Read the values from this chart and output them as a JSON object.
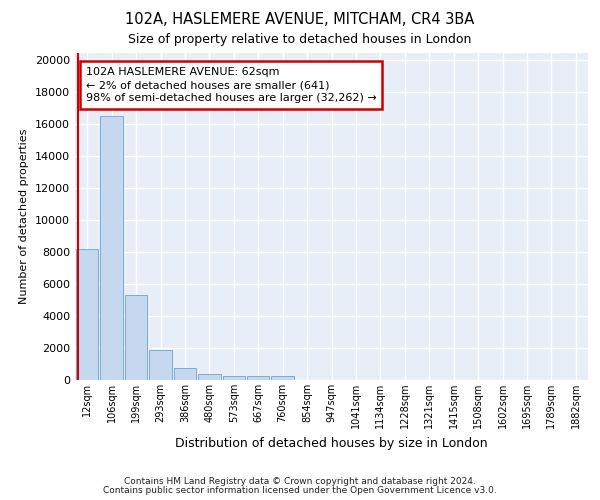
{
  "title1": "102A, HASLEMERE AVENUE, MITCHAM, CR4 3BA",
  "title2": "Size of property relative to detached houses in London",
  "xlabel": "Distribution of detached houses by size in London",
  "ylabel": "Number of detached properties",
  "categories": [
    "12sqm",
    "106sqm",
    "199sqm",
    "293sqm",
    "386sqm",
    "480sqm",
    "573sqm",
    "667sqm",
    "760sqm",
    "854sqm",
    "947sqm",
    "1041sqm",
    "1134sqm",
    "1228sqm",
    "1321sqm",
    "1415sqm",
    "1508sqm",
    "1602sqm",
    "1695sqm",
    "1789sqm",
    "1882sqm"
  ],
  "bar_heights": [
    8200,
    16500,
    5300,
    1850,
    750,
    350,
    250,
    250,
    250,
    0,
    0,
    0,
    0,
    0,
    0,
    0,
    0,
    0,
    0,
    0,
    0
  ],
  "bar_color": "#c5d8f0",
  "bar_edge_color": "#7aadd4",
  "background_color": "#e8eef8",
  "grid_color": "#ffffff",
  "annotation_line1": "102A HASLEMERE AVENUE: 62sqm",
  "annotation_line2": "← 2% of detached houses are smaller (641)",
  "annotation_line3": "98% of semi-detached houses are larger (32,262) →",
  "annotation_box_color": "#ffffff",
  "annotation_box_edge": "#cc0000",
  "footer1": "Contains HM Land Registry data © Crown copyright and database right 2024.",
  "footer2": "Contains public sector information licensed under the Open Government Licence v3.0.",
  "ylim": [
    0,
    20500
  ],
  "yticks": [
    0,
    2000,
    4000,
    6000,
    8000,
    10000,
    12000,
    14000,
    16000,
    18000,
    20000
  ]
}
